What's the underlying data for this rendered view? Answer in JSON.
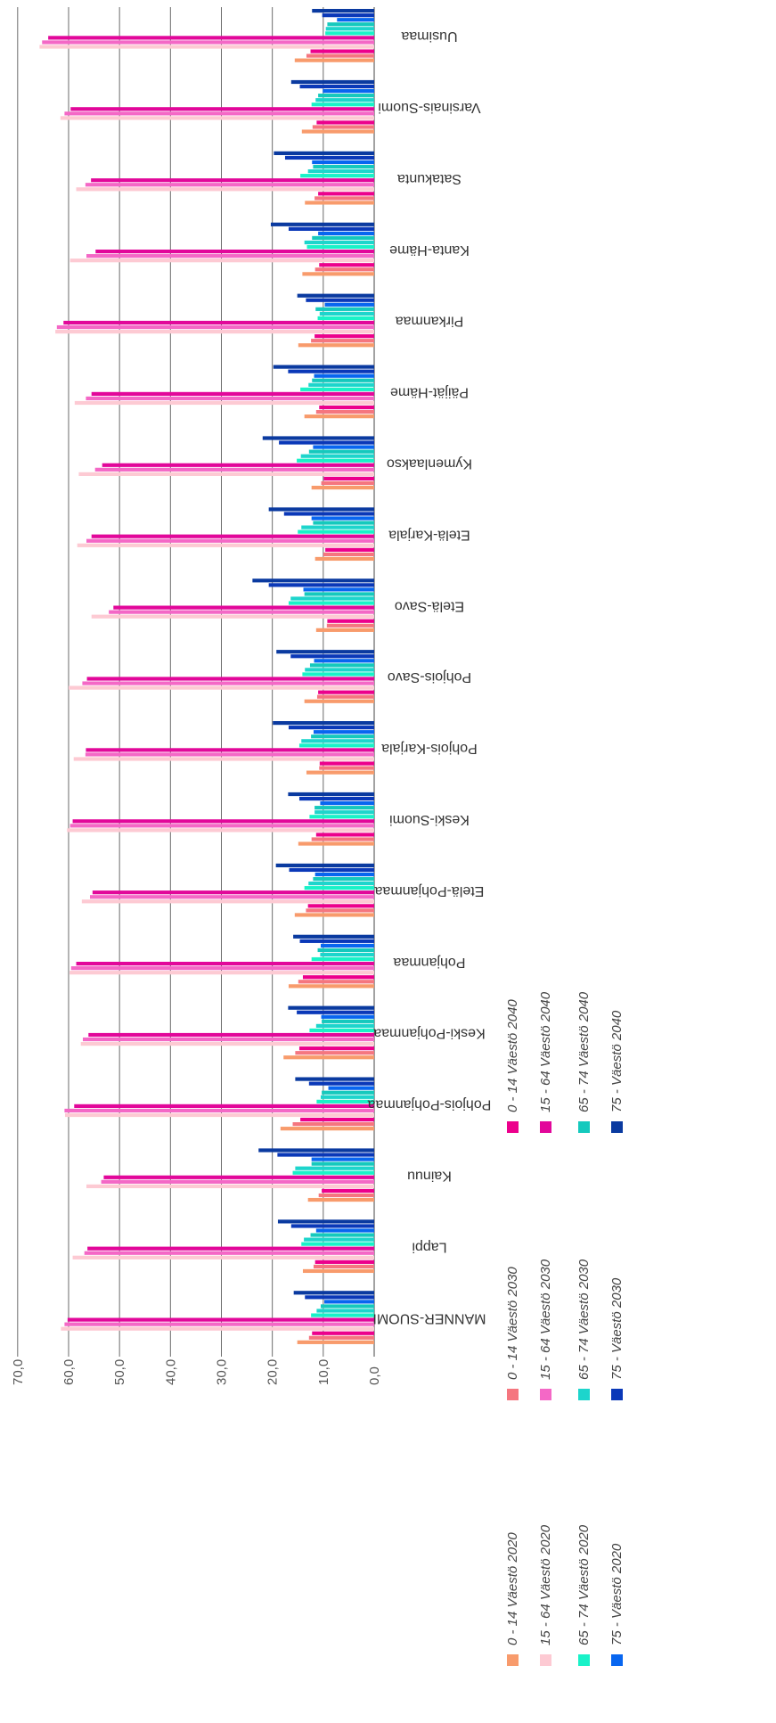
{
  "chart_data": {
    "type": "bar",
    "orientation": "horizontal",
    "title": "",
    "xlabel": "",
    "ylabel": "",
    "xlim": [
      0,
      70
    ],
    "x_ticks": [
      "0,0",
      "10,0",
      "20,0",
      "30,0",
      "40,0",
      "50,0",
      "60,0",
      "70,0"
    ],
    "grid": true,
    "legend_position": "bottom",
    "categories": [
      "Uusimaa",
      "Varsinais-Suomi",
      "Satakunta",
      "Kanta-Häme",
      "Pirkanmaa",
      "Päijät-Häme",
      "Kymenlaakso",
      "Etelä-Karjala",
      "Etelä-Savo",
      "Pohjois-Savo",
      "Pohjois-Karjala",
      "Keski-Suomi",
      "Etelä-Pohjanmaa",
      "Pohjanmaa",
      "Keski-Pohjanmaa",
      "Pohjois-Pohjanmaa",
      "Kainuu",
      "Lappi",
      "MANNER-SUOMI"
    ],
    "series": [
      {
        "name": "0 - 14 Väestö 2020",
        "color": "#f89b6c",
        "values": [
          15.6,
          14.2,
          13.6,
          14.1,
          14.9,
          13.7,
          12.3,
          11.6,
          11.4,
          13.7,
          13.3,
          14.9,
          15.6,
          16.8,
          17.8,
          18.4,
          13.0,
          14.0,
          15.1
        ]
      },
      {
        "name": "0 - 14 Väestö 2030",
        "color": "#f5767f",
        "values": [
          13.3,
          12.1,
          11.7,
          11.6,
          12.4,
          11.4,
          10.4,
          10.0,
          9.3,
          11.2,
          10.8,
          12.3,
          13.4,
          14.9,
          15.5,
          16.0,
          10.9,
          11.9,
          12.8
        ]
      },
      {
        "name": "0 - 14 Väestö 2040",
        "color": "#ec008c",
        "values": [
          12.5,
          11.3,
          11.0,
          10.8,
          11.7,
          10.8,
          9.9,
          9.6,
          9.2,
          11.0,
          10.7,
          11.4,
          13.0,
          14.0,
          14.7,
          14.5,
          10.3,
          11.6,
          12.2
        ]
      },
      {
        "name": "15 - 64 Väestö 2020",
        "color": "#fdcad3",
        "values": [
          65.7,
          61.6,
          58.5,
          59.7,
          62.6,
          58.8,
          58.0,
          58.3,
          55.5,
          60.0,
          59.0,
          60.3,
          57.4,
          59.8,
          57.6,
          60.7,
          56.5,
          59.2,
          61.5
        ]
      },
      {
        "name": "15 - 64 Väestö 2030",
        "color": "#f468c6",
        "values": [
          65.2,
          60.8,
          56.7,
          56.5,
          62.3,
          56.6,
          54.8,
          56.5,
          52.1,
          57.3,
          56.7,
          59.7,
          55.8,
          59.5,
          57.2,
          60.8,
          53.6,
          56.9,
          60.8
        ]
      },
      {
        "name": "15 - 64 Väestö 2040",
        "color": "#e2079a",
        "values": [
          64.0,
          59.6,
          55.6,
          54.7,
          61.0,
          55.5,
          53.4,
          55.5,
          51.2,
          56.4,
          56.6,
          59.2,
          55.3,
          58.5,
          56.1,
          58.9,
          53.1,
          56.3,
          60.2
        ]
      },
      {
        "name": "65 - 74 Väestö 2020",
        "color": "#19f2c8",
        "values": [
          9.6,
          12.3,
          14.5,
          13.2,
          11.1,
          14.5,
          15.2,
          15.0,
          16.8,
          14.1,
          14.7,
          12.7,
          13.7,
          12.3,
          12.7,
          11.3,
          16.0,
          14.3,
          12.4
        ]
      },
      {
        "name": "65 - 74 Väestö 2030",
        "color": "#1dd5cc",
        "values": [
          9.5,
          11.5,
          13.0,
          13.7,
          10.7,
          12.9,
          14.4,
          14.3,
          16.4,
          13.6,
          14.3,
          11.7,
          12.9,
          10.6,
          11.4,
          10.5,
          15.5,
          13.8,
          11.3
        ]
      },
      {
        "name": "65 - 74 Väestö 2040",
        "color": "#15c9bd",
        "values": [
          9.2,
          11.0,
          12.0,
          12.2,
          11.5,
          12.2,
          12.8,
          12.0,
          13.7,
          12.6,
          12.4,
          11.7,
          12.0,
          11.1,
          10.3,
          10.3,
          12.3,
          12.5,
          10.5
        ]
      },
      {
        "name": "75 - Väestö 2020",
        "color": "#0866f0",
        "values": [
          7.3,
          10.1,
          12.2,
          11.0,
          9.7,
          11.8,
          12.0,
          12.3,
          13.9,
          11.8,
          11.9,
          10.6,
          11.6,
          10.5,
          10.4,
          9.0,
          12.3,
          11.4,
          9.8
        ]
      },
      {
        "name": "75 - Väestö 2030",
        "color": "#0a38b8",
        "values": [
          10.2,
          14.6,
          17.5,
          16.8,
          13.4,
          16.9,
          18.7,
          17.7,
          20.7,
          16.4,
          16.8,
          14.7,
          16.7,
          14.6,
          15.2,
          12.8,
          19.0,
          16.3,
          13.6
        ]
      },
      {
        "name": "75 - Väestö 2040",
        "color": "#0a3aa0",
        "values": [
          12.2,
          16.3,
          19.7,
          20.3,
          15.1,
          19.8,
          21.9,
          20.7,
          23.9,
          19.2,
          19.9,
          16.9,
          19.3,
          15.9,
          16.9,
          15.5,
          22.7,
          18.9,
          15.8
        ]
      }
    ]
  }
}
